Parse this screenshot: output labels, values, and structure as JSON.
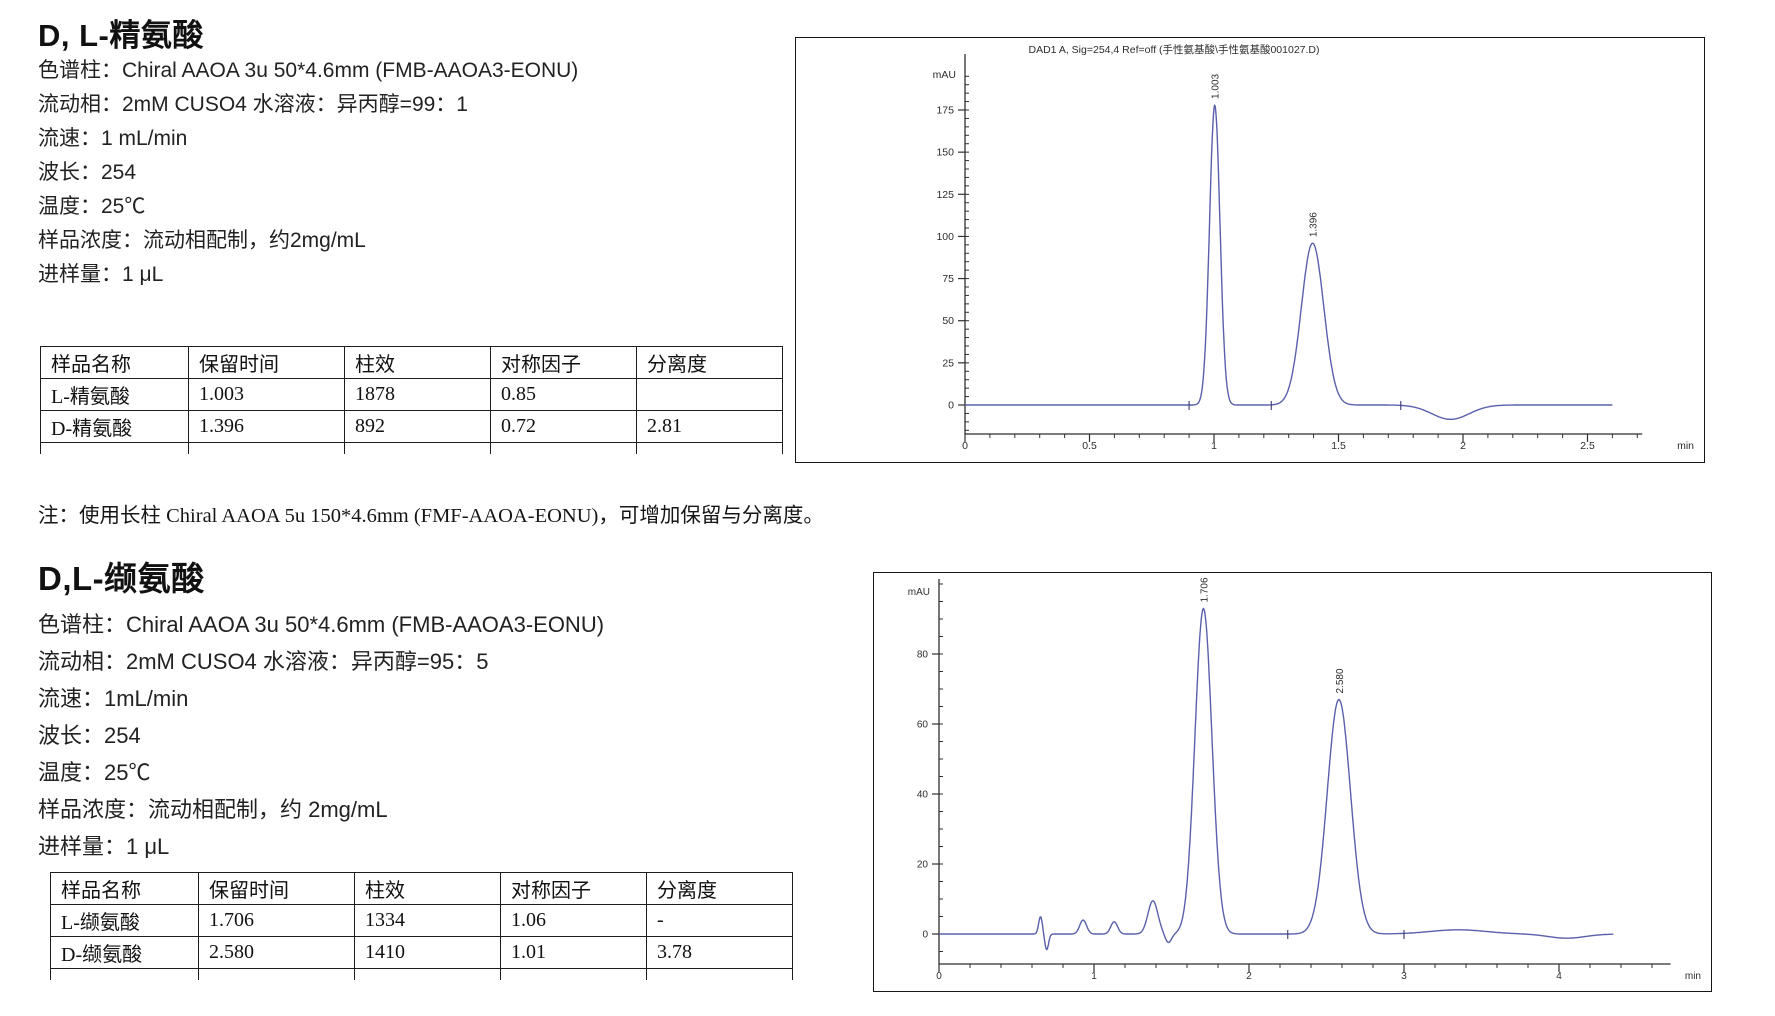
{
  "sections": [
    {
      "title": "D, L-精氨酸",
      "params": [
        "色谱柱：Chiral AAOA 3u 50*4.6mm (FMB-AAOA3-EONU)",
        "流动相：2mM CUSO4 水溶液：异丙醇=99：1",
        "流速：1 mL/min",
        "波长：254",
        "温度：25℃",
        "样品浓度：流动相配制，约2mg/mL",
        "进样量：1 μL"
      ],
      "table": {
        "headers": [
          "样品名称",
          "保留时间",
          "柱效",
          "对称因子",
          "分离度"
        ],
        "rows": [
          [
            "L-精氨酸",
            "1.003",
            "1878",
            "0.85",
            ""
          ],
          [
            "D-精氨酸",
            "1.396",
            "892",
            "0.72",
            "2.81"
          ]
        ]
      },
      "note": "注：使用长柱 Chiral AAOA 5u 150*4.6mm (FMF-AAOA-EONU)，可增加保留与分离度。"
    },
    {
      "title": "D,L-缬氨酸",
      "params": [
        "色谱柱：Chiral AAOA 3u 50*4.6mm (FMB-AAOA3-EONU)",
        "流动相：2mM CUSO4 水溶液：异丙醇=95：5",
        "流速：1mL/min",
        "波长：254",
        "温度：25℃",
        "样品浓度：流动相配制，约 2mg/mL",
        "进样量：1 μL"
      ],
      "table": {
        "headers": [
          "样品名称",
          "保留时间",
          "柱效",
          "对称因子",
          "分离度"
        ],
        "rows": [
          [
            "L-缬氨酸",
            "1.706",
            "1334",
            "1.06",
            "-"
          ],
          [
            "D-缬氨酸",
            "2.580",
            "1410",
            "1.01",
            "3.78"
          ]
        ]
      },
      "note": ""
    }
  ],
  "chart_data": [
    {
      "type": "line",
      "title": "DAD1 A, Sig=254,4 Ref=off (手性氨基酸\\手性氨基酸001027.D)",
      "ylabel": "mAU",
      "xlabel": "min",
      "x_ticks": [
        0,
        0.5,
        1,
        1.5,
        2,
        2.5
      ],
      "x_minor_step": 0.1,
      "y_ticks": [
        0,
        25,
        50,
        75,
        100,
        125,
        150,
        175
      ],
      "y_minor_step": 5,
      "xlim": [
        0,
        2.72
      ],
      "ylim": [
        -17,
        196
      ],
      "trace_range": [
        0,
        2.6
      ],
      "grid": false,
      "peaks": [
        {
          "rt": 1.003,
          "height_mau": 178,
          "width_sigma": 0.021,
          "label": "1.003"
        },
        {
          "rt": 1.396,
          "height_mau": 96,
          "width_sigma": 0.045,
          "label": "1.396"
        }
      ],
      "baseline_events": [
        {
          "rt": 1.95,
          "height_mau": -8.5,
          "width_sigma": 0.075
        }
      ],
      "integration_marks": [
        0.9,
        1.23,
        1.75
      ],
      "series_color": "#5a60ab",
      "title_color": "#2b2bb4"
    },
    {
      "type": "line",
      "title": "",
      "ylabel": "mAU",
      "xlabel": "min",
      "x_ticks": [
        0,
        1,
        2,
        3,
        4
      ],
      "x_minor_step": 0.2,
      "y_ticks": [
        0,
        20,
        40,
        60,
        80
      ],
      "y_minor_step": 5,
      "xlim": [
        0,
        4.72
      ],
      "ylim": [
        -8.6,
        100
      ],
      "trace_range": [
        0,
        4.35
      ],
      "grid": false,
      "peaks": [
        {
          "rt": 1.706,
          "height_mau": 93,
          "width_sigma": 0.055,
          "label": "1.706"
        },
        {
          "rt": 2.58,
          "height_mau": 67,
          "width_sigma": 0.075,
          "label": "2.580"
        }
      ],
      "baseline_events": [
        {
          "rt": 0.655,
          "height_mau": 5,
          "width_sigma": 0.012
        },
        {
          "rt": 0.695,
          "height_mau": -4.5,
          "width_sigma": 0.012
        },
        {
          "rt": 0.93,
          "height_mau": 4,
          "width_sigma": 0.022
        },
        {
          "rt": 1.13,
          "height_mau": 3.5,
          "width_sigma": 0.022
        },
        {
          "rt": 1.38,
          "height_mau": 9.5,
          "width_sigma": 0.032
        },
        {
          "rt": 1.48,
          "height_mau": -2.5,
          "width_sigma": 0.02
        },
        {
          "rt": 3.35,
          "height_mau": 1.2,
          "width_sigma": 0.18
        },
        {
          "rt": 4.05,
          "height_mau": -1.2,
          "width_sigma": 0.12
        }
      ],
      "integration_marks": [
        2.25,
        3.0
      ],
      "series_color": "#5a60ab",
      "title_color": "#2b2bb4"
    }
  ]
}
